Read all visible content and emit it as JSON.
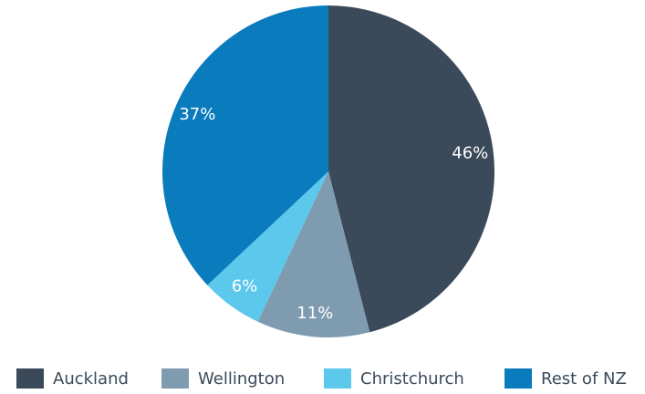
{
  "chart_data": {
    "type": "pie",
    "categories": [
      "Auckland",
      "Wellington",
      "Christchurch",
      "Rest of NZ"
    ],
    "values": [
      46,
      11,
      6,
      37
    ],
    "value_labels": [
      "46%",
      "11%",
      "6%",
      "37%"
    ],
    "colors": [
      "#3b4a5a",
      "#7f9bb0",
      "#5bc8ec",
      "#0a7bbd"
    ],
    "legend": "bottom"
  }
}
